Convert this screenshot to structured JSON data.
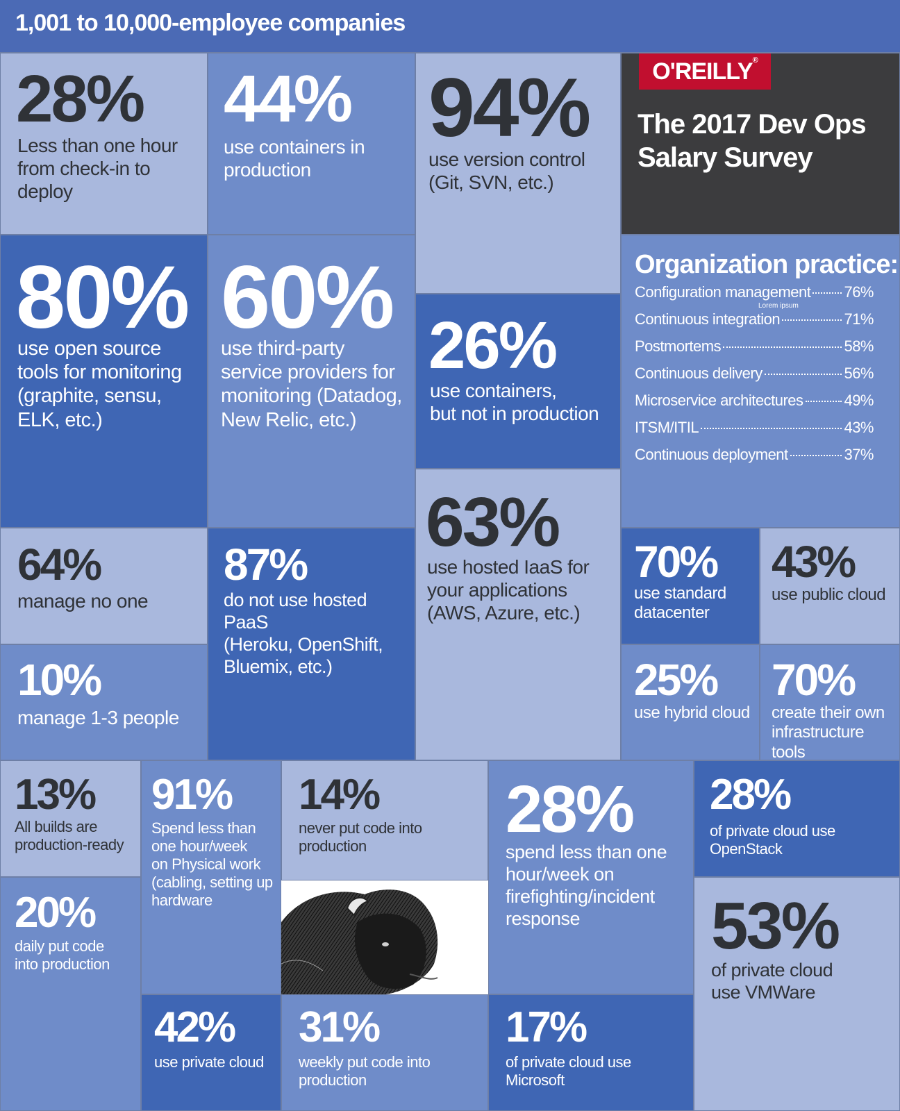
{
  "header": {
    "title": "1,001 to 10,000-employee companies"
  },
  "brand": {
    "logo": "O'REILLY",
    "title_line1": "The 2017 Dev Ops",
    "title_line2": "Salary Survey"
  },
  "stats": {
    "deploy_hour": {
      "pct": "28%",
      "line1": "Less than one hour",
      "line2": "from check-in to deploy"
    },
    "containers_prod": {
      "pct": "44%",
      "line1": "use containers in",
      "line2": "production"
    },
    "version_control": {
      "pct": "94%",
      "line1": "use version control",
      "line2": "(Git, SVN, etc.)"
    },
    "open_source_monitoring": {
      "pct": "80%",
      "line1": "use open source",
      "line2": "tools for monitoring",
      "line3": "(graphite, sensu,",
      "line4": "ELK, etc.)"
    },
    "third_party_monitoring": {
      "pct": "60%",
      "line1": "use third-party",
      "line2": "service providers for",
      "line3": "monitoring (Datadog,",
      "line4": "New Relic, etc.)"
    },
    "containers_not_prod": {
      "pct": "26%",
      "line1": "use containers,",
      "line2": "but not in production"
    },
    "hosted_iaas": {
      "pct": "63%",
      "line1": "use hosted IaaS for",
      "line2": "your applications",
      "line3": "(AWS, Azure, etc.)"
    },
    "manage_no_one": {
      "pct": "64%",
      "line1": "manage no one"
    },
    "manage_1_3": {
      "pct": "10%",
      "line1": "manage 1-3 people"
    },
    "no_hosted_paas": {
      "pct": "87%",
      "line1": "do not use hosted PaaS",
      "line2": "(Heroku, OpenShift,",
      "line3": "Bluemix, etc.)"
    },
    "standard_datacenter": {
      "pct": "70%",
      "line1": "use standard",
      "line2": "datacenter"
    },
    "public_cloud": {
      "pct": "43%",
      "line1": "use public cloud"
    },
    "hybrid_cloud": {
      "pct": "25%",
      "line1": "use hybrid cloud"
    },
    "own_infra_tools": {
      "pct": "70%",
      "line1": "create their own",
      "line2": "infrastructure tools"
    },
    "builds_ready": {
      "pct": "13%",
      "line1": "All builds are",
      "line2": "production-ready"
    },
    "daily_code": {
      "pct": "20%",
      "line1": "daily put code",
      "line2": "into production"
    },
    "physical_work": {
      "pct": "91%",
      "line1": "Spend less than",
      "line2": "one hour/week",
      "line3": "on Physical work",
      "line4": "(cabling, setting up",
      "line5": "hardware"
    },
    "private_cloud": {
      "pct": "42%",
      "line1": "use private cloud"
    },
    "never_code": {
      "pct": "14%",
      "line1": "never put code into",
      "line2": "production"
    },
    "weekly_code": {
      "pct": "31%",
      "line1": "weekly put code into",
      "line2": "production"
    },
    "firefighting": {
      "pct": "28%",
      "line1": "spend less than one",
      "line2": "hour/week on",
      "line3": "firefighting/incident",
      "line4": "response"
    },
    "microsoft": {
      "pct": "17%",
      "line1": "of private cloud use",
      "line2": "Microsoft"
    },
    "openstack": {
      "pct": "28%",
      "line1": "of private cloud use",
      "line2": "OpenStack"
    },
    "vmware": {
      "pct": "53%",
      "line1": "of private cloud",
      "line2": "use VMWare"
    }
  },
  "practice": {
    "heading": "Organization practice:",
    "note": "Lorem ipsum",
    "items": [
      {
        "label": "Configuration management",
        "value": "76%"
      },
      {
        "label": "Continuous integration",
        "value": "71%"
      },
      {
        "label": "Postmortems",
        "value": "58%"
      },
      {
        "label": "Continuous delivery",
        "value": "56%"
      },
      {
        "label": "Microservice architectures",
        "value": "49%"
      },
      {
        "label": "ITSM/ITIL",
        "value": "43%"
      },
      {
        "label": "Continuous deployment",
        "value": "37%"
      }
    ]
  },
  "colors": {
    "light": "#a9b8dd",
    "mid": "#6f8cc9",
    "dark": "#3f66b4",
    "gray": "#3c3c3e",
    "brand_red": "#c10f2f"
  },
  "images": {
    "bison": "bison-engraving-image"
  }
}
